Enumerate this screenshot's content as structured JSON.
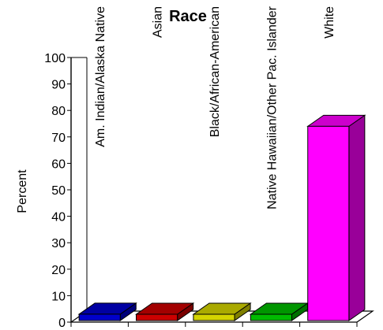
{
  "chart_data": {
    "type": "bar",
    "title": "Race",
    "xlabel": "",
    "ylabel": "Percent",
    "ylim": [
      0,
      100
    ],
    "yticks": [
      "0",
      "10",
      "20",
      "30",
      "40",
      "50",
      "60",
      "70",
      "80",
      "90",
      "100"
    ],
    "grid": false,
    "categories": [
      "Am. Indian/Alaska Native",
      "Asian",
      "Black/African-American",
      "Native Hawaiian/Other Pac. Islander",
      "White"
    ],
    "values": [
      3,
      1,
      2,
      1,
      74
    ],
    "colors": [
      "#0000cc",
      "#cc0000",
      "#d4d400",
      "#00bb00",
      "#ff00ff"
    ]
  }
}
